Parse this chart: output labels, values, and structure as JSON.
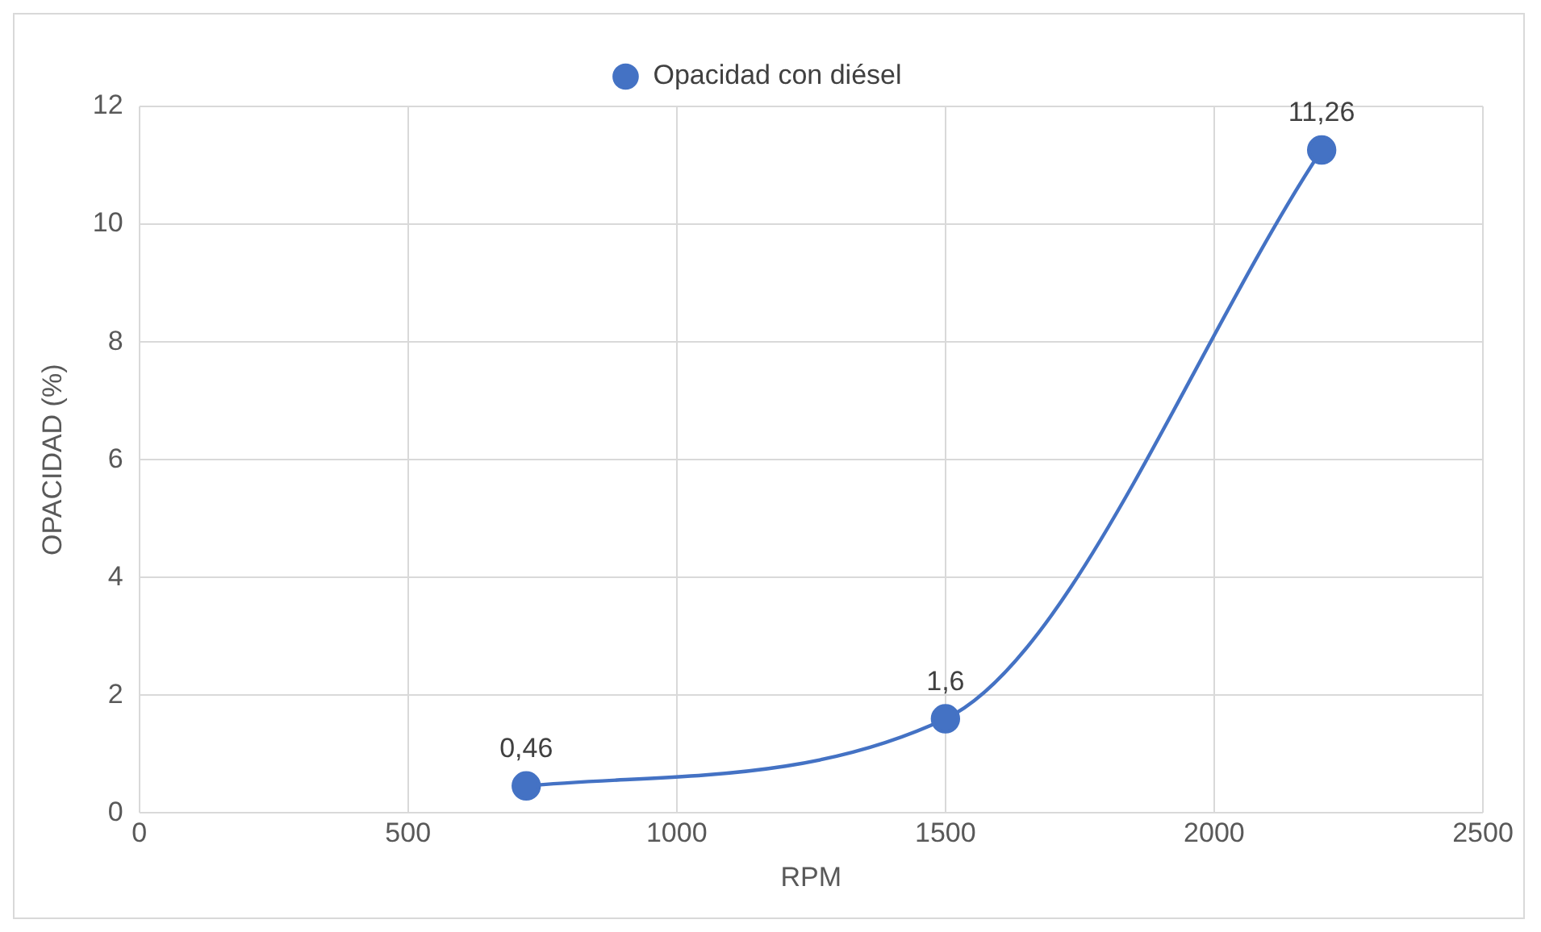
{
  "chart_data": {
    "type": "line",
    "xlabel": "RPM",
    "ylabel": "OPACIDAD (%)",
    "x": [
      720,
      1500,
      2200
    ],
    "series": [
      {
        "name": "Opacidad con diésel",
        "color": "#4472c4",
        "values": [
          0.46,
          1.6,
          11.26
        ],
        "value_labels": [
          "0,46",
          "1,6",
          "11,26"
        ]
      }
    ],
    "xlim": [
      0,
      2500
    ],
    "xticks": [
      0,
      500,
      1000,
      1500,
      2000,
      2500
    ],
    "ylim": [
      0,
      12
    ],
    "yticks": [
      0,
      2,
      4,
      6,
      8,
      10,
      12
    ],
    "grid": true,
    "legend": "top",
    "marker": "circle",
    "line_style": "solid"
  }
}
